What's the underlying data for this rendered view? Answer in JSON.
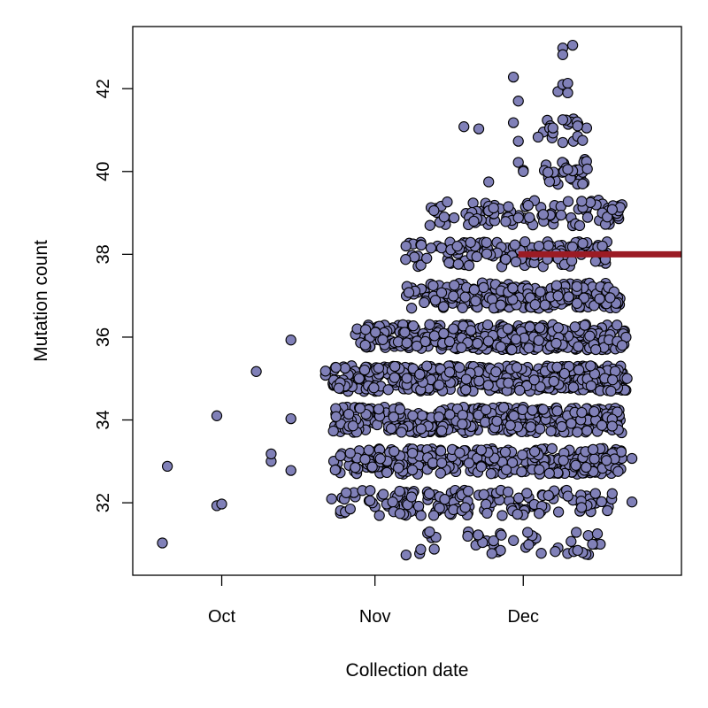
{
  "chart_data": {
    "type": "scatter",
    "xlabel": "Collection date",
    "ylabel": "Mutation count",
    "x_axis": {
      "type": "date",
      "range": [
        "2020-09-13",
        "2021-01-02"
      ],
      "ticks": [
        {
          "date": "2020-10-01",
          "label": "Oct"
        },
        {
          "date": "2020-11-01",
          "label": "Nov"
        },
        {
          "date": "2020-12-01",
          "label": "Dec"
        }
      ]
    },
    "y_axis": {
      "range": [
        30.25,
        43.5
      ],
      "ticks": [
        32,
        34,
        36,
        38,
        40,
        42
      ]
    },
    "grid": false,
    "point_style": {
      "fill": "#8080b8",
      "stroke": "#000000",
      "shape": "circle"
    },
    "reference_segment": {
      "y": 38,
      "x_start": "2020-11-30",
      "x_end": "2021-01-02",
      "color": "#9b1b24"
    },
    "density_bands": [
      {
        "y": 31,
        "start": "2020-11-07",
        "end": "2020-12-17",
        "count": 42
      },
      {
        "y": 32,
        "start": "2020-10-23",
        "end": "2020-12-19",
        "count": 150
      },
      {
        "y": 33,
        "start": "2020-10-23",
        "end": "2020-12-21",
        "count": 330
      },
      {
        "y": 34,
        "start": "2020-10-23",
        "end": "2020-12-21",
        "count": 380
      },
      {
        "y": 35,
        "start": "2020-10-23",
        "end": "2020-12-22",
        "count": 420
      },
      {
        "y": 36,
        "start": "2020-10-28",
        "end": "2020-12-22",
        "count": 360
      },
      {
        "y": 37,
        "start": "2020-11-07",
        "end": "2020-12-21",
        "count": 260
      },
      {
        "y": 38,
        "start": "2020-11-07",
        "end": "2020-12-18",
        "count": 140
      },
      {
        "y": 39,
        "start": "2020-11-10",
        "end": "2020-12-21",
        "count": 90
      },
      {
        "y": 40,
        "start": "2020-12-05",
        "end": "2020-12-14",
        "count": 25
      },
      {
        "y": 41,
        "start": "2020-12-05",
        "end": "2020-12-14",
        "count": 14
      }
    ],
    "points": [
      {
        "date": "2020-09-19",
        "y": 31.03
      },
      {
        "date": "2020-09-20",
        "y": 32.88
      },
      {
        "date": "2020-09-30",
        "y": 34.1
      },
      {
        "date": "2020-09-30",
        "y": 31.93
      },
      {
        "date": "2020-10-01",
        "y": 31.97
      },
      {
        "date": "2020-10-08",
        "y": 35.17
      },
      {
        "date": "2020-10-11",
        "y": 33.0
      },
      {
        "date": "2020-10-11",
        "y": 33.18
      },
      {
        "date": "2020-10-15",
        "y": 34.03
      },
      {
        "date": "2020-10-15",
        "y": 32.78
      },
      {
        "date": "2020-10-15",
        "y": 35.93
      },
      {
        "date": "2020-10-22",
        "y": 35.08
      },
      {
        "date": "2020-10-22",
        "y": 35.18
      },
      {
        "date": "2020-10-26",
        "y": 31.78
      },
      {
        "date": "2020-10-27",
        "y": 31.85
      },
      {
        "date": "2020-10-27",
        "y": 33.2
      },
      {
        "date": "2020-10-28",
        "y": 32.85
      },
      {
        "date": "2020-10-29",
        "y": 34.28
      },
      {
        "date": "2020-10-30",
        "y": 33.05
      },
      {
        "date": "2020-10-31",
        "y": 32.05
      },
      {
        "date": "2020-11-06",
        "y": 32.28
      },
      {
        "date": "2020-11-13",
        "y": 30.88
      },
      {
        "date": "2020-11-15",
        "y": 38.9
      },
      {
        "date": "2020-11-17",
        "y": 38.88
      },
      {
        "date": "2020-11-19",
        "y": 41.08
      },
      {
        "date": "2020-11-21",
        "y": 38.8
      },
      {
        "date": "2020-11-22",
        "y": 41.03
      },
      {
        "date": "2020-11-24",
        "y": 39.75
      },
      {
        "date": "2020-11-24",
        "y": 39.05
      },
      {
        "date": "2020-11-25",
        "y": 39.12
      },
      {
        "date": "2020-11-28",
        "y": 39.15
      },
      {
        "date": "2020-11-29",
        "y": 41.18
      },
      {
        "date": "2020-11-29",
        "y": 42.28
      },
      {
        "date": "2020-11-30",
        "y": 41.7
      },
      {
        "date": "2020-11-30",
        "y": 40.73
      },
      {
        "date": "2020-11-30",
        "y": 40.22
      },
      {
        "date": "2020-11-30",
        "y": 38.88
      },
      {
        "date": "2020-12-01",
        "y": 40.03
      },
      {
        "date": "2020-12-01",
        "y": 40.0
      },
      {
        "date": "2020-12-02",
        "y": 39.18
      },
      {
        "date": "2020-12-04",
        "y": 40.83
      },
      {
        "date": "2020-12-06",
        "y": 39.98
      },
      {
        "date": "2020-12-07",
        "y": 40.93
      },
      {
        "date": "2020-12-07",
        "y": 41.05
      },
      {
        "date": "2020-12-08",
        "y": 41.93
      },
      {
        "date": "2020-12-09",
        "y": 42.1
      },
      {
        "date": "2020-12-09",
        "y": 41.25
      },
      {
        "date": "2020-12-09",
        "y": 40.7
      },
      {
        "date": "2020-12-09",
        "y": 42.98
      },
      {
        "date": "2020-12-09",
        "y": 42.82
      },
      {
        "date": "2020-12-10",
        "y": 42.13
      },
      {
        "date": "2020-12-10",
        "y": 41.9
      },
      {
        "date": "2020-12-10",
        "y": 40.05
      },
      {
        "date": "2020-12-11",
        "y": 43.05
      },
      {
        "date": "2020-12-12",
        "y": 41.1
      },
      {
        "date": "2020-12-12",
        "y": 40.85
      },
      {
        "date": "2020-12-13",
        "y": 40.75
      },
      {
        "date": "2020-12-13",
        "y": 39.7
      },
      {
        "date": "2020-12-17",
        "y": 38.2
      },
      {
        "date": "2020-12-17",
        "y": 39.0
      },
      {
        "date": "2020-12-18",
        "y": 38.9
      },
      {
        "date": "2020-12-19",
        "y": 39.08
      },
      {
        "date": "2020-12-19",
        "y": 34.02
      },
      {
        "date": "2020-12-19",
        "y": 33.85
      },
      {
        "date": "2020-12-19",
        "y": 32.22
      },
      {
        "date": "2020-12-20",
        "y": 35.9
      },
      {
        "date": "2020-12-21",
        "y": 35.8
      },
      {
        "date": "2020-12-22",
        "y": 35.0
      },
      {
        "date": "2020-12-23",
        "y": 33.07
      },
      {
        "date": "2020-12-23",
        "y": 32.02
      },
      {
        "date": "2020-12-16",
        "y": 31.25
      },
      {
        "date": "2020-12-15",
        "y": 31.0
      },
      {
        "date": "2020-12-13",
        "y": 30.8
      },
      {
        "date": "2020-12-12",
        "y": 30.85
      }
    ]
  }
}
